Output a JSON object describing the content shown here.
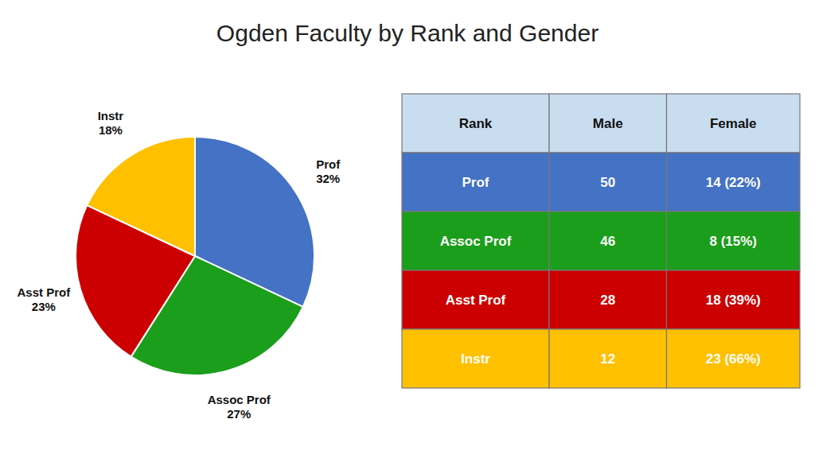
{
  "chart_data": [
    {
      "type": "pie",
      "title": "Ogden Faculty by Rank and Gender",
      "categories": [
        "Prof",
        "Assoc Prof",
        "Asst Prof",
        "Instr"
      ],
      "values": [
        32,
        27,
        23,
        18
      ],
      "value_labels": [
        "32%",
        "27%",
        "23%",
        "18%"
      ],
      "colors": [
        "#4472C4",
        "#1B9E1B",
        "#CC0000",
        "#FFC000"
      ],
      "data_labels": true
    },
    {
      "type": "table",
      "columns": [
        "Rank",
        "Male",
        "Female"
      ],
      "rows": [
        [
          "Prof",
          "50",
          "14 (22%)"
        ],
        [
          "Assoc Prof",
          "46",
          "8 (15%)"
        ],
        [
          "Asst Prof",
          "28",
          "18 (39%)"
        ],
        [
          "Instr",
          "12",
          "23 (66%)"
        ]
      ],
      "colors": [
        "#4472C4",
        "#1B9E1B",
        "#CC0000",
        "#FFC000"
      ],
      "color": "#C9DDF0"
    }
  ]
}
